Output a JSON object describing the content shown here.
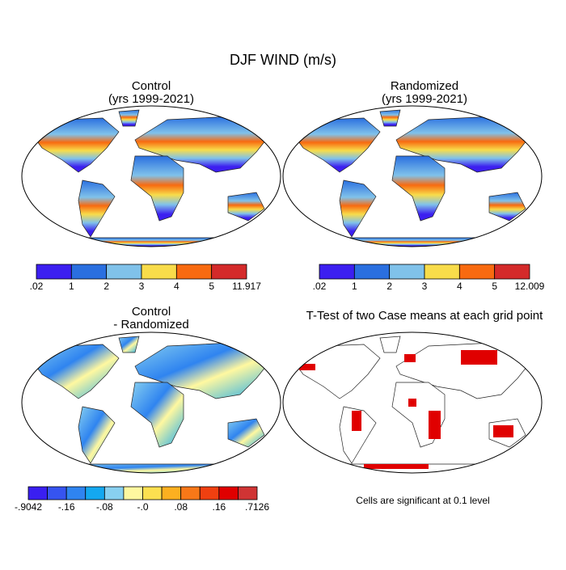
{
  "title": "DJF WIND (m/s)",
  "panels": [
    {
      "title": "Control",
      "subtitle": "(yrs 1999-2021)",
      "colorbar": {
        "colors": [
          "#3c1ff0",
          "#2a6fe0",
          "#80c2ea",
          "#f8dc4a",
          "#f86a10",
          "#d42a2a"
        ],
        "labels": [
          ".02",
          "1",
          "2",
          "3",
          "4",
          "5",
          "11.917"
        ]
      }
    },
    {
      "title": "Randomized",
      "subtitle": "(yrs 1999-2021)",
      "colorbar": {
        "colors": [
          "#3c1ff0",
          "#2a6fe0",
          "#80c2ea",
          "#f8dc4a",
          "#f86a10",
          "#d42a2a"
        ],
        "labels": [
          ".02",
          "1",
          "2",
          "3",
          "4",
          "5",
          "12.009"
        ]
      }
    },
    {
      "title": "Control",
      "subtitle": "- Randomized",
      "colorbar": {
        "colors": [
          "#3a1ff0",
          "#3654f0",
          "#2f84f0",
          "#14a8f0",
          "#88d0f0",
          "#fff8a0",
          "#fde050",
          "#fcb020",
          "#f87818",
          "#f04010",
          "#e00000",
          "#d03434"
        ],
        "labels": [
          "-.9042",
          "-.16",
          "-.08",
          "-.0",
          ".08",
          ".16",
          ".7126"
        ]
      }
    },
    {
      "title": "T-Test of two Case means at each grid point",
      "note": "Cells are significant at 0.1 level"
    }
  ]
}
